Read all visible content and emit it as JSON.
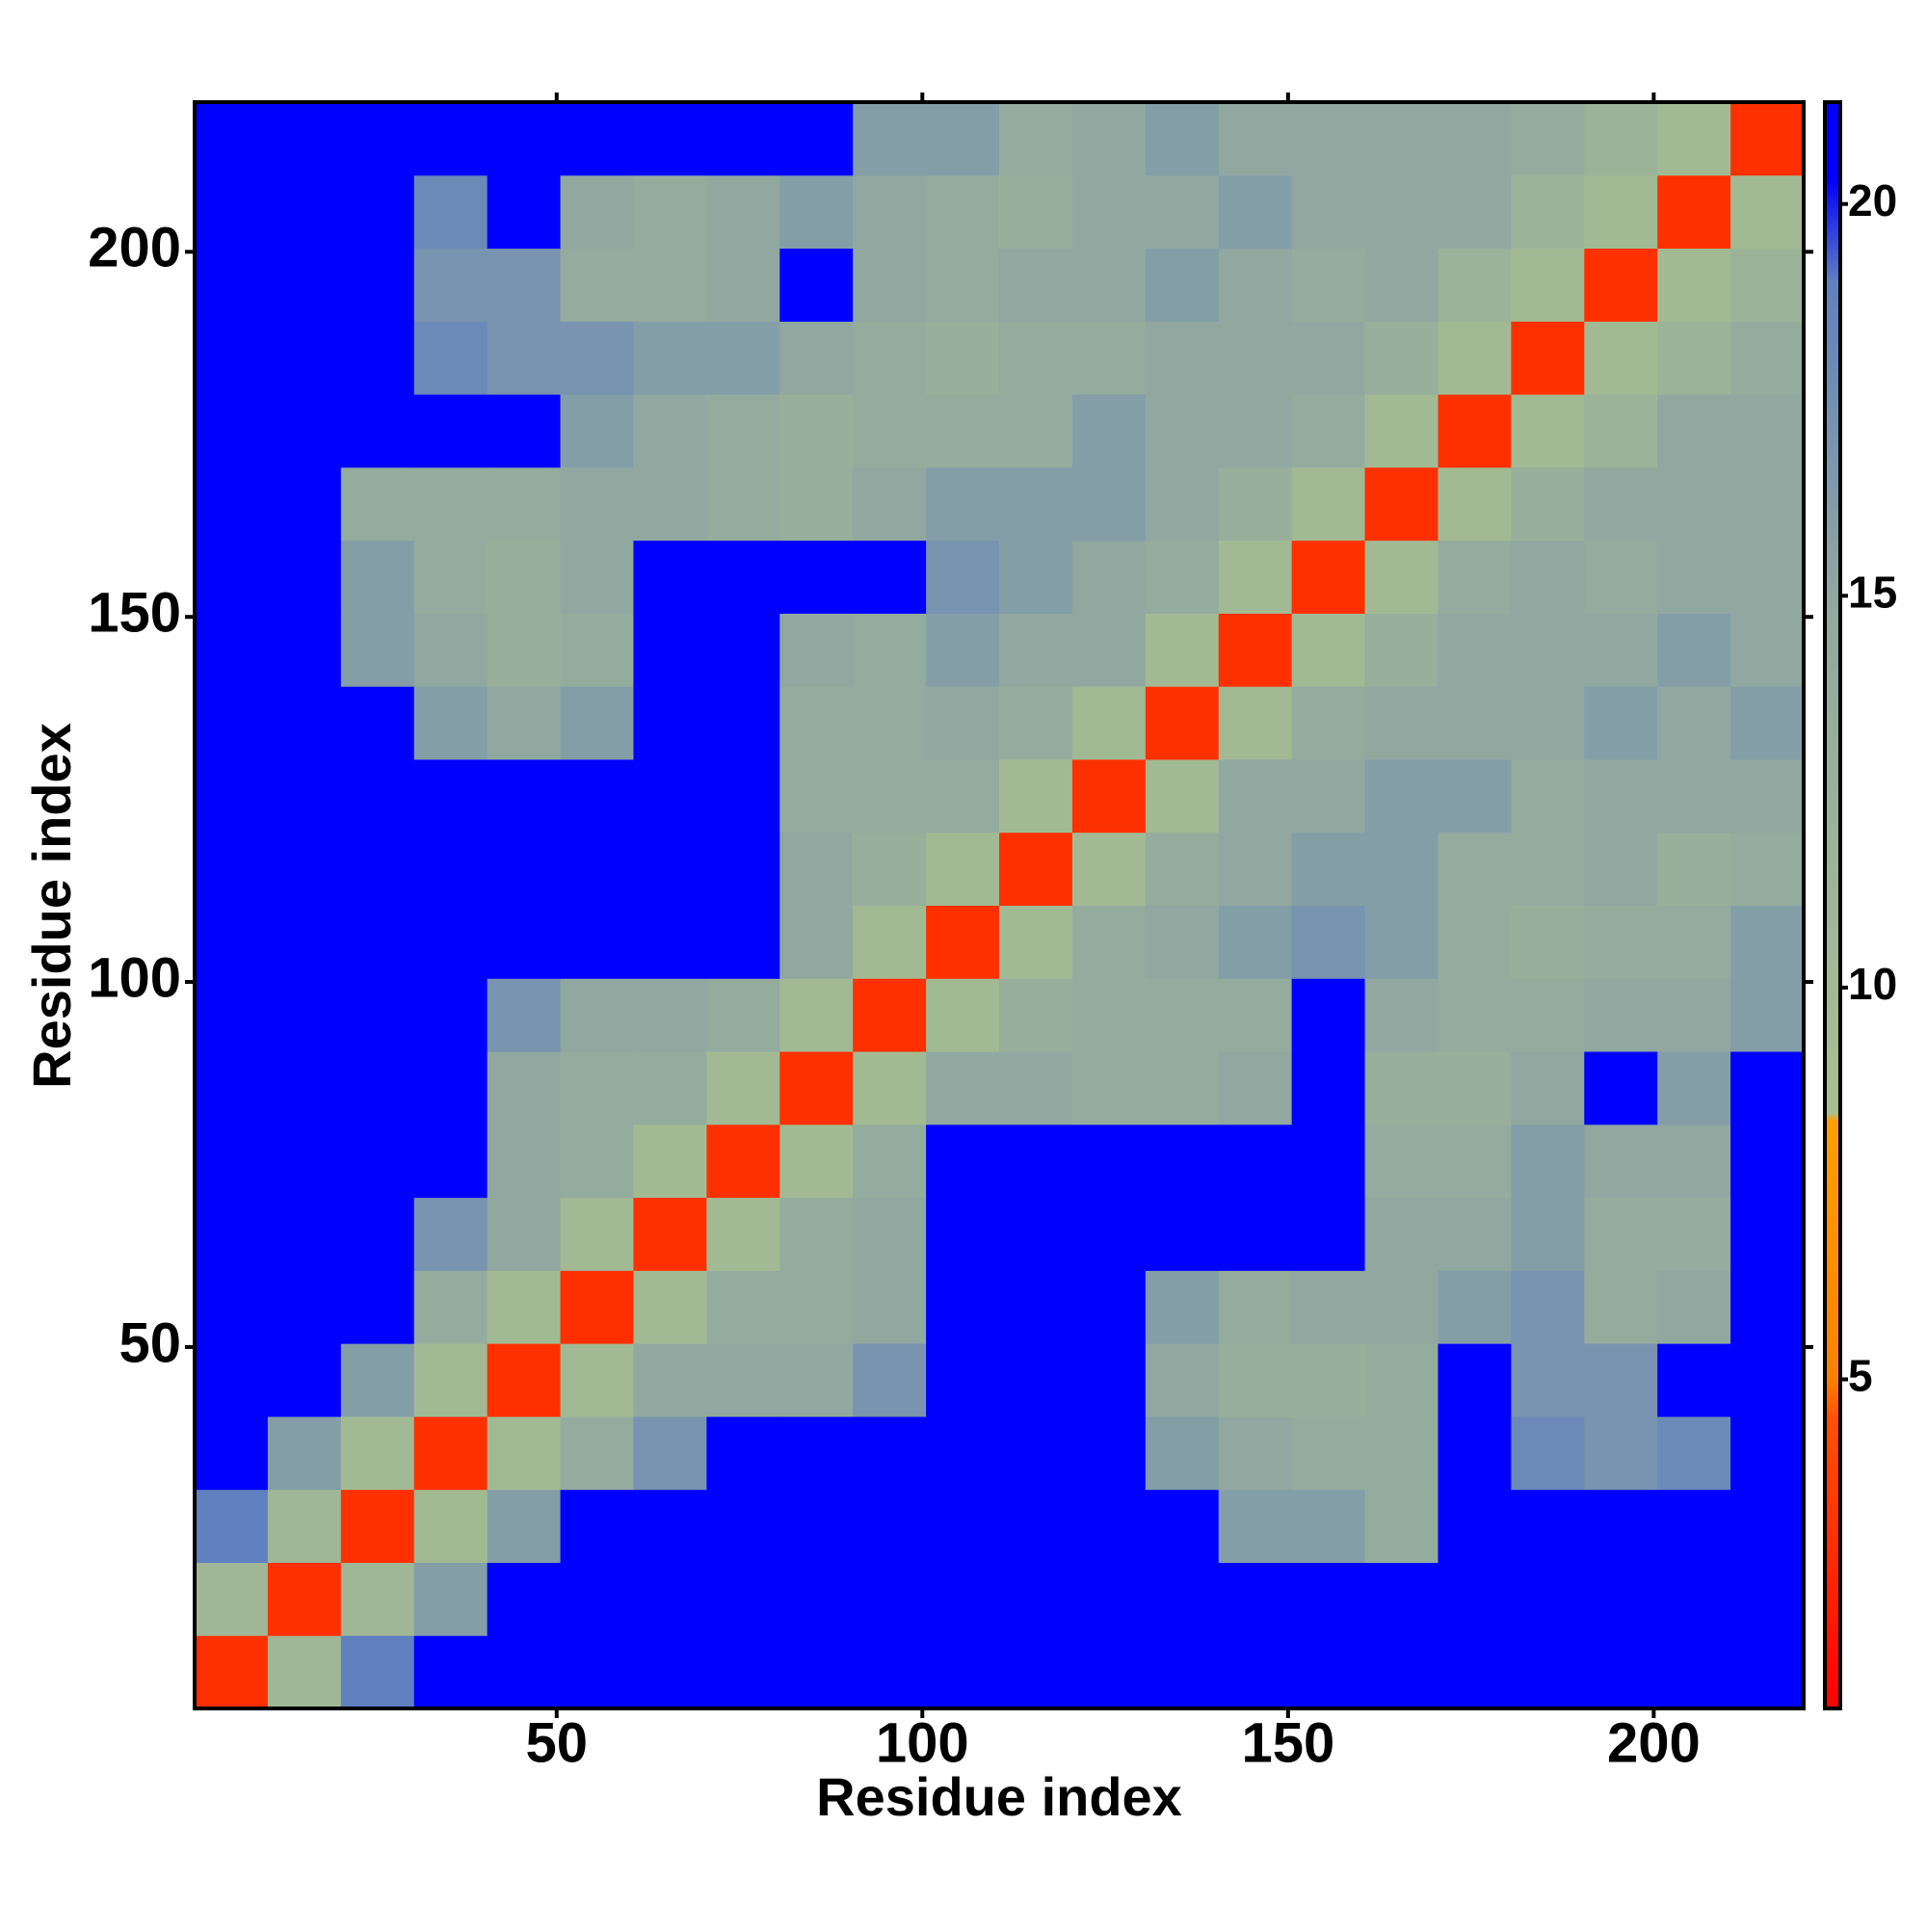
{
  "chart_data": {
    "type": "heatmap",
    "x_label": "Residue index",
    "y_label": "Residue index",
    "x": [
      5.5,
      15.5,
      25.5,
      35.5,
      45.5,
      55.5,
      65.5,
      75.5,
      85.5,
      95.5,
      105.5,
      115.5,
      125.5,
      135.5,
      145.5,
      155.5,
      165.5,
      175.5,
      185.5,
      195.5,
      205.5,
      215.5
    ],
    "y": [
      5.5,
      15.5,
      25.5,
      35.5,
      45.5,
      55.5,
      65.5,
      75.5,
      85.5,
      95.5,
      105.5,
      115.5,
      125.5,
      135.5,
      145.5,
      155.5,
      165.5,
      175.5,
      185.5,
      195.5,
      205.5,
      215.5
    ],
    "values": [
      [
        3,
        11,
        19,
        21,
        21,
        21,
        21,
        21,
        21,
        21,
        21,
        21,
        21,
        21,
        21,
        21,
        21,
        21,
        21,
        21,
        21,
        21
      ],
      [
        11,
        3,
        11,
        16,
        21,
        21,
        21,
        21,
        21,
        21,
        21,
        21,
        21,
        21,
        21,
        21,
        21,
        21,
        21,
        21,
        21,
        21
      ],
      [
        19,
        11,
        3,
        10,
        16,
        21,
        21,
        21,
        21,
        21,
        21,
        21,
        21,
        21,
        16,
        16,
        14,
        21,
        21,
        21,
        21,
        21
      ],
      [
        21,
        16,
        10,
        3,
        10,
        14,
        17,
        21,
        21,
        21,
        21,
        21,
        21,
        16,
        15,
        14,
        14,
        21,
        18,
        17,
        18,
        21
      ],
      [
        21,
        21,
        16,
        10,
        3,
        10,
        15,
        15,
        15,
        17,
        21,
        21,
        21,
        15,
        13,
        13,
        14,
        21,
        17,
        17,
        21,
        21
      ],
      [
        21,
        21,
        21,
        14,
        10,
        3,
        10,
        14,
        14,
        15,
        21,
        21,
        21,
        16,
        14,
        15,
        15,
        16,
        17,
        14,
        15,
        21
      ],
      [
        21,
        21,
        21,
        17,
        15,
        10,
        3,
        10,
        14,
        15,
        21,
        21,
        21,
        21,
        21,
        21,
        15,
        15,
        16,
        14,
        14,
        21
      ],
      [
        21,
        21,
        21,
        21,
        15,
        14,
        10,
        3,
        10,
        14,
        21,
        21,
        21,
        21,
        21,
        21,
        14,
        14,
        16,
        15,
        15,
        21
      ],
      [
        21,
        21,
        21,
        21,
        15,
        14,
        14,
        10,
        3,
        10,
        15,
        15,
        14,
        14,
        15,
        21,
        13,
        13,
        15,
        21,
        16,
        21
      ],
      [
        21,
        21,
        21,
        21,
        17,
        15,
        15,
        14,
        10,
        3,
        10,
        13,
        14,
        14,
        14,
        21,
        15,
        14,
        14,
        15,
        15,
        16
      ],
      [
        21,
        21,
        21,
        21,
        21,
        21,
        21,
        21,
        15,
        10,
        3,
        10,
        14,
        15,
        16,
        17,
        16,
        14,
        13,
        14,
        14,
        16
      ],
      [
        21,
        21,
        21,
        21,
        21,
        21,
        21,
        21,
        15,
        13,
        10,
        3,
        10,
        14,
        15,
        16,
        16,
        14,
        14,
        15,
        13,
        14
      ],
      [
        21,
        21,
        21,
        21,
        21,
        21,
        21,
        21,
        14,
        14,
        14,
        10,
        3,
        10,
        15,
        15,
        16,
        16,
        14,
        15,
        15,
        15
      ],
      [
        21,
        21,
        21,
        16,
        15,
        16,
        21,
        21,
        14,
        14,
        15,
        14,
        10,
        3,
        10,
        14,
        15,
        15,
        15,
        16,
        15,
        16
      ],
      [
        21,
        21,
        16,
        15,
        13,
        14,
        21,
        21,
        15,
        14,
        16,
        15,
        15,
        10,
        3,
        10,
        13,
        15,
        15,
        15,
        16,
        15
      ],
      [
        21,
        21,
        16,
        14,
        13,
        15,
        21,
        21,
        21,
        21,
        17,
        16,
        15,
        14,
        10,
        3,
        10,
        14,
        15,
        14,
        15,
        15
      ],
      [
        21,
        21,
        14,
        14,
        14,
        15,
        15,
        14,
        13,
        15,
        16,
        16,
        16,
        15,
        13,
        10,
        3,
        10,
        13,
        15,
        15,
        15
      ],
      [
        21,
        21,
        21,
        21,
        21,
        16,
        15,
        14,
        13,
        14,
        14,
        14,
        16,
        15,
        15,
        14,
        10,
        3,
        10,
        12,
        15,
        15
      ],
      [
        21,
        21,
        21,
        18,
        17,
        17,
        16,
        16,
        15,
        14,
        13,
        14,
        14,
        15,
        15,
        15,
        13,
        10,
        3,
        10,
        12,
        14
      ],
      [
        21,
        21,
        21,
        17,
        17,
        14,
        14,
        15,
        21,
        15,
        14,
        15,
        15,
        16,
        15,
        14,
        15,
        12,
        10,
        3,
        10,
        12
      ],
      [
        21,
        21,
        21,
        18,
        21,
        15,
        14,
        15,
        16,
        15,
        14,
        13,
        15,
        15,
        16,
        15,
        15,
        15,
        12,
        10,
        3,
        10
      ],
      [
        21,
        21,
        21,
        21,
        21,
        21,
        21,
        21,
        21,
        16,
        16,
        14,
        15,
        16,
        15,
        15,
        15,
        15,
        14,
        12,
        10,
        3
      ]
    ],
    "xlim": [
      0.5,
      220.5
    ],
    "ylim": [
      0.5,
      220.5
    ],
    "xticks": [
      50,
      100,
      150,
      200
    ],
    "yticks": [
      50,
      100,
      150,
      200
    ],
    "clim": [
      0.8,
      21.3
    ],
    "cticks": [
      5,
      10,
      15,
      20
    ],
    "colorscale": [
      [
        0.8,
        "#ff0000"
      ],
      [
        4.5,
        "#ff5000"
      ],
      [
        5,
        "#ff8000"
      ],
      [
        8.3,
        "#ffa000"
      ],
      [
        8.4,
        "#a8c090"
      ],
      [
        15,
        "#90a8a0"
      ],
      [
        19,
        "#6080c0"
      ],
      [
        20.3,
        "#0000ff"
      ],
      [
        21.3,
        "#0000ff"
      ]
    ]
  }
}
